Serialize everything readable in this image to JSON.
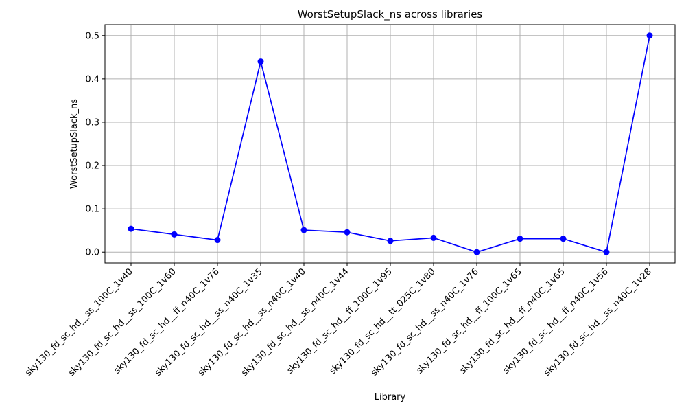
{
  "chart_data": {
    "type": "line",
    "title": "WorstSetupSlack_ns across libraries",
    "xlabel": "Library",
    "ylabel": "WorstSetupSlack_ns",
    "categories": [
      "sky130_fd_sc_hd__ss_100C_1v40",
      "sky130_fd_sc_hd__ss_100C_1v60",
      "sky130_fd_sc_hd__ff_n40C_1v76",
      "sky130_fd_sc_hd__ss_n40C_1v35",
      "sky130_fd_sc_hd__ss_n40C_1v40",
      "sky130_fd_sc_hd__ss_n40C_1v44",
      "sky130_fd_sc_hd__ff_100C_1v95",
      "sky130_fd_sc_hd__tt_025C_1v80",
      "sky130_fd_sc_hd__ss_n40C_1v76",
      "sky130_fd_sc_hd__ff_100C_1v65",
      "sky130_fd_sc_hd__ff_n40C_1v65",
      "sky130_fd_sc_hd__ff_n40C_1v56",
      "sky130_fd_sc_hd__ss_n40C_1v28"
    ],
    "series": [
      {
        "values": [
          0.054,
          0.041,
          0.028,
          0.44,
          0.051,
          0.046,
          0.026,
          0.033,
          0.0,
          0.031,
          0.031,
          0.0,
          0.5
        ],
        "color": "#0000ff",
        "marker": "circle"
      }
    ],
    "ylim": [
      -0.025,
      0.525
    ],
    "yticks": [
      "0.0",
      "0.1",
      "0.2",
      "0.3",
      "0.4",
      "0.5"
    ],
    "grid": true,
    "legend": "none"
  }
}
